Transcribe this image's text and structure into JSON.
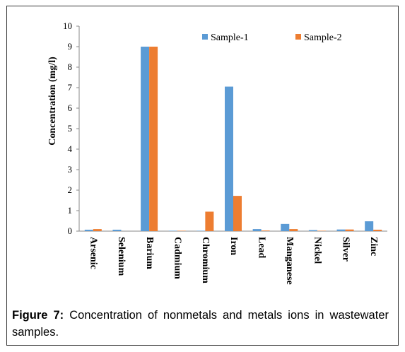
{
  "chart_data": {
    "type": "bar",
    "y_label": "Concentration (mg/l)",
    "categories": [
      "Arsenic",
      "Selenium",
      "Barium",
      "Cadmium",
      "Chromium",
      "Iron",
      "Lead",
      "Manganese",
      "Nickel",
      "Silver",
      "Zinc"
    ],
    "series": [
      {
        "name": "Sample-1",
        "color": "#5b9bd5",
        "values": [
          0.07,
          0.07,
          9,
          0.02,
          0.02,
          7.05,
          0.1,
          0.35,
          0.05,
          0.08,
          0.48
        ]
      },
      {
        "name": "Sample-2",
        "color": "#ed7d31",
        "values": [
          0.1,
          0,
          9,
          0.02,
          0.95,
          1.72,
          0.03,
          0.1,
          0.02,
          0.08,
          0.07
        ]
      }
    ],
    "ylim": [
      0,
      10
    ],
    "yticks": [
      0,
      1,
      2,
      3,
      4,
      5,
      6,
      7,
      8,
      9,
      10
    ],
    "grid": false,
    "legend": "top"
  },
  "caption": {
    "label": "Figure 7:",
    "text": "Concentration of nonmetals and metals ions in wastewater samples."
  }
}
